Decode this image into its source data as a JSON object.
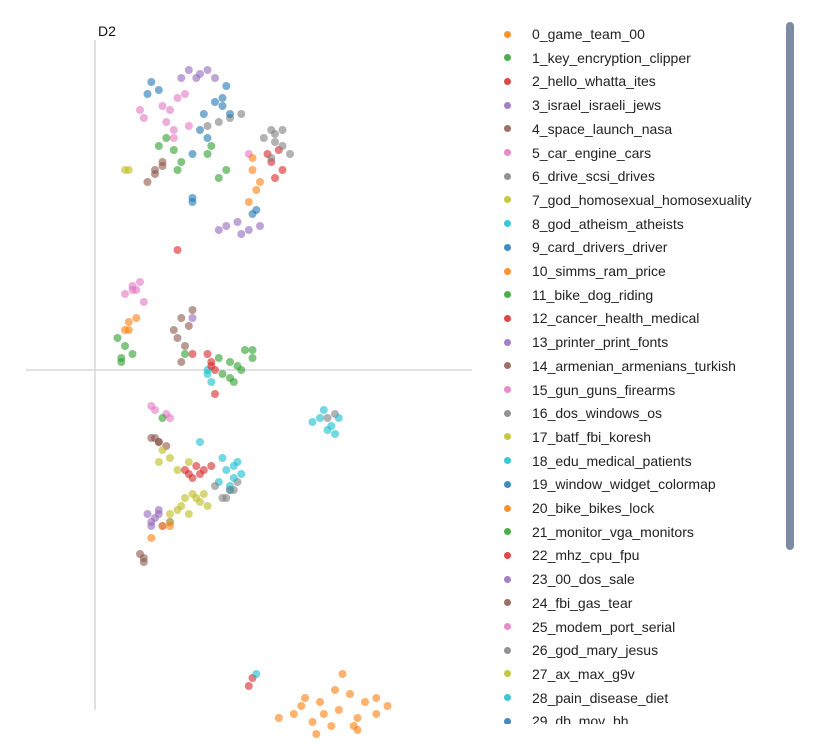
{
  "chart_data": {
    "type": "scatter",
    "title": "",
    "xlabel": "",
    "ylabel": "D2",
    "xlim": [
      -2,
      10
    ],
    "ylim": [
      -10,
      10
    ],
    "axis_lines": {
      "x": 0,
      "y": 0
    },
    "series": [
      {
        "name": "0_game_team_00",
        "color": "#ff7f0e",
        "points": [
          [
            6.5,
            -8.5
          ],
          [
            6.0,
            -8.3
          ],
          [
            7.0,
            -8.7
          ],
          [
            5.5,
            -8.4
          ],
          [
            7.5,
            -8.6
          ],
          [
            6.3,
            -8.9
          ],
          [
            6.8,
            -8.1
          ],
          [
            5.8,
            -8.8
          ],
          [
            7.2,
            -8.3
          ],
          [
            6.6,
            -7.6
          ],
          [
            5.3,
            -8.6
          ],
          [
            7.8,
            -8.4
          ],
          [
            6.1,
            -8.6
          ],
          [
            6.9,
            -8.9
          ],
          [
            4.9,
            -8.7
          ],
          [
            7.5,
            -8.2
          ],
          [
            5.6,
            -8.2
          ],
          [
            6.4,
            -8.0
          ],
          [
            7.0,
            -9.0
          ],
          [
            5.9,
            -9.1
          ]
        ]
      },
      {
        "name": "1_key_encryption_clipper",
        "color": "#2ca02c",
        "points": [
          [
            3.6,
            0.2
          ],
          [
            3.9,
            0.0
          ],
          [
            4.2,
            0.3
          ],
          [
            3.4,
            -0.1
          ],
          [
            4.0,
            0.5
          ],
          [
            3.7,
            -0.3
          ],
          [
            0.8,
            0.6
          ],
          [
            1.0,
            0.4
          ],
          [
            0.6,
            0.8
          ],
          [
            0.7,
            0.3
          ],
          [
            2.2,
            5.0
          ],
          [
            2.3,
            5.2
          ],
          [
            3.5,
            5.0
          ],
          [
            3.3,
            4.8
          ],
          [
            3.8,
            0.1
          ]
        ]
      },
      {
        "name": "2_hello_whatta_ites",
        "color": "#d62728",
        "points": [
          [
            4.7,
            5.2
          ],
          [
            4.9,
            5.5
          ],
          [
            5.0,
            5.0
          ],
          [
            4.6,
            5.4
          ],
          [
            4.8,
            4.8
          ],
          [
            3.1,
            0.2
          ],
          [
            3.2,
            0.0
          ],
          [
            3.0,
            0.4
          ],
          [
            2.9,
            -2.5
          ],
          [
            3.1,
            -2.4
          ],
          [
            2.8,
            -2.6
          ],
          [
            2.2,
            3.0
          ],
          [
            4.2,
            -7.7
          ]
        ]
      },
      {
        "name": "3_israel_israeli_jews",
        "color": "#9467bd",
        "points": [
          [
            1.6,
            -3.7
          ],
          [
            1.8,
            -3.9
          ],
          [
            1.4,
            -3.6
          ],
          [
            1.7,
            -3.5
          ],
          [
            2.0,
            -3.8
          ],
          [
            1.5,
            -3.9
          ],
          [
            3.5,
            3.6
          ],
          [
            3.8,
            3.7
          ],
          [
            4.1,
            3.5
          ],
          [
            3.3,
            3.5
          ],
          [
            4.4,
            3.6
          ],
          [
            2.8,
            7.4
          ],
          [
            3.0,
            7.5
          ],
          [
            3.2,
            7.3
          ]
        ]
      },
      {
        "name": "4_space_launch_nasa",
        "color": "#8c564b",
        "points": [
          [
            2.1,
            1.0
          ],
          [
            2.3,
            1.3
          ],
          [
            2.5,
            1.1
          ],
          [
            2.2,
            0.8
          ],
          [
            2.6,
            1.5
          ],
          [
            2.4,
            0.6
          ],
          [
            1.7,
            -1.8
          ],
          [
            1.9,
            -1.9
          ],
          [
            1.6,
            -1.7
          ],
          [
            1.3,
            -4.8
          ],
          [
            1.2,
            -4.6
          ],
          [
            1.8,
            5.1
          ],
          [
            1.6,
            5.0
          ]
        ]
      },
      {
        "name": "5_car_engine_cars",
        "color": "#e377c2",
        "points": [
          [
            2.0,
            6.5
          ],
          [
            2.2,
            6.8
          ],
          [
            1.8,
            6.6
          ],
          [
            2.4,
            6.9
          ],
          [
            1.9,
            6.2
          ],
          [
            2.5,
            6.1
          ],
          [
            2.1,
            5.8
          ],
          [
            1.0,
            2.0
          ],
          [
            1.2,
            2.2
          ],
          [
            0.8,
            1.9
          ],
          [
            1.3,
            1.7
          ],
          [
            1.6,
            -1.0
          ],
          [
            1.9,
            -1.1
          ],
          [
            4.1,
            5.4
          ]
        ]
      },
      {
        "name": "6_drive_scsi_drives",
        "color": "#7f7f7f",
        "points": [
          [
            3.3,
            6.2
          ],
          [
            3.6,
            6.3
          ],
          [
            3.0,
            6.1
          ],
          [
            3.9,
            6.4
          ],
          [
            4.5,
            5.8
          ],
          [
            4.8,
            5.7
          ],
          [
            5.0,
            6.0
          ],
          [
            4.7,
            5.3
          ],
          [
            3.7,
            -3.0
          ],
          [
            3.5,
            -3.2
          ],
          [
            3.8,
            -2.8
          ],
          [
            6.2,
            -1.2
          ],
          [
            6.4,
            -1.1
          ]
        ]
      },
      {
        "name": "7_god_homosexual_homosexuality",
        "color": "#bcbd22",
        "points": [
          [
            1.8,
            -2.0
          ],
          [
            2.0,
            -2.2
          ],
          [
            1.7,
            -2.3
          ],
          [
            2.2,
            -2.5
          ],
          [
            2.5,
            -2.3
          ],
          [
            2.6,
            -3.1
          ],
          [
            2.8,
            -3.3
          ],
          [
            2.4,
            -3.2
          ],
          [
            3.0,
            -3.4
          ],
          [
            2.0,
            -3.6
          ],
          [
            2.2,
            -3.5
          ],
          [
            0.9,
            5.0
          ]
        ]
      },
      {
        "name": "8_god_atheism_atheists",
        "color": "#17becf",
        "points": [
          [
            6.0,
            -1.2
          ],
          [
            6.2,
            -1.5
          ],
          [
            5.8,
            -1.3
          ],
          [
            6.4,
            -1.6
          ],
          [
            6.1,
            -1.0
          ],
          [
            3.5,
            -2.5
          ],
          [
            3.7,
            -2.7
          ],
          [
            3.3,
            -2.8
          ],
          [
            3.6,
            -3.0
          ],
          [
            3.9,
            -2.6
          ],
          [
            3.4,
            -2.2
          ],
          [
            2.8,
            -1.8
          ],
          [
            3.0,
            0.0
          ]
        ]
      },
      {
        "name": "9_card_drivers_driver",
        "color": "#1f77b4",
        "points": [
          [
            1.5,
            7.2
          ],
          [
            1.7,
            7.0
          ],
          [
            1.4,
            6.9
          ],
          [
            2.8,
            6.0
          ],
          [
            3.0,
            5.8
          ],
          [
            2.9,
            6.4
          ],
          [
            3.2,
            6.7
          ],
          [
            3.4,
            6.8
          ],
          [
            3.5,
            7.1
          ],
          [
            2.6,
            4.3
          ]
        ]
      },
      {
        "name": "10_simms_ram_price",
        "color": "#ff7f0e",
        "points": [
          [
            4.2,
            5.0
          ],
          [
            4.3,
            4.5
          ],
          [
            4.1,
            4.2
          ],
          [
            4.4,
            4.7
          ],
          [
            4.2,
            5.3
          ],
          [
            0.9,
            1.2
          ],
          [
            1.1,
            1.3
          ],
          [
            0.8,
            1.0
          ],
          [
            1.5,
            -4.2
          ]
        ]
      },
      {
        "name": "11_bike_dog_riding",
        "color": "#2ca02c",
        "points": [
          [
            1.7,
            5.6
          ],
          [
            1.9,
            5.8
          ],
          [
            2.1,
            5.5
          ],
          [
            3.0,
            5.4
          ],
          [
            3.1,
            5.6
          ],
          [
            1.8,
            -1.2
          ],
          [
            4.2,
            0.5
          ],
          [
            2.4,
            0.4
          ]
        ]
      },
      {
        "name": "12_cancer_health_medical",
        "color": "#d62728",
        "points": [
          [
            2.5,
            -2.6
          ],
          [
            2.7,
            -2.4
          ],
          [
            2.4,
            -2.5
          ],
          [
            2.6,
            0.4
          ],
          [
            3.2,
            -0.6
          ]
        ]
      },
      {
        "name": "13_printer_print_fonts",
        "color": "#9467bd",
        "points": [
          [
            2.3,
            7.3
          ],
          [
            2.5,
            7.5
          ],
          [
            2.7,
            7.3
          ],
          [
            2.6,
            1.3
          ]
        ]
      },
      {
        "name": "14_armenian_armenians_turkish",
        "color": "#8c564b",
        "points": [
          [
            1.6,
            4.9
          ],
          [
            1.8,
            5.2
          ],
          [
            1.4,
            4.7
          ],
          [
            2.3,
            0.2
          ]
        ]
      },
      {
        "name": "15_gun_guns_firearms",
        "color": "#e377c2",
        "points": [
          [
            1.2,
            6.5
          ],
          [
            1.3,
            6.3
          ],
          [
            2.0,
            -1.2
          ],
          [
            1.0,
            2.1
          ]
        ]
      },
      {
        "name": "16_dos_windows_os",
        "color": "#7f7f7f",
        "points": [
          [
            5.0,
            5.6
          ],
          [
            5.2,
            5.4
          ],
          [
            4.7,
            6.0
          ],
          [
            3.2,
            -2.9
          ]
        ]
      },
      {
        "name": "17_batf_fbi_koresh",
        "color": "#bcbd22",
        "points": [
          [
            2.3,
            -3.4
          ],
          [
            2.5,
            -3.6
          ],
          [
            2.7,
            -3.2
          ],
          [
            2.0,
            -3.8
          ]
        ]
      },
      {
        "name": "18_edu_medical_patients",
        "color": "#17becf",
        "points": [
          [
            6.3,
            -1.4
          ],
          [
            6.5,
            -1.2
          ],
          [
            3.6,
            -2.9
          ],
          [
            3.8,
            -2.3
          ],
          [
            3.1,
            -0.3
          ]
        ]
      },
      {
        "name": "19_window_widget_colormap",
        "color": "#1f77b4",
        "points": [
          [
            3.4,
            6.6
          ],
          [
            3.6,
            6.4
          ],
          [
            2.6,
            5.4
          ],
          [
            4.3,
            4.0
          ]
        ]
      },
      {
        "name": "20_bike_bikes_lock",
        "color": "#ff7f0e",
        "points": [
          [
            1.8,
            -3.9
          ],
          [
            2.0,
            -3.9
          ],
          [
            0.9,
            1.0
          ]
        ]
      },
      {
        "name": "21_monitor_vga_monitors",
        "color": "#2ca02c",
        "points": [
          [
            3.3,
            0.3
          ],
          [
            3.6,
            -0.2
          ],
          [
            0.7,
            0.2
          ]
        ]
      },
      {
        "name": "22_mhz_cpu_fpu",
        "color": "#d62728",
        "points": [
          [
            2.6,
            -2.7
          ],
          [
            4.1,
            -7.9
          ],
          [
            3.1,
            0.1
          ]
        ]
      },
      {
        "name": "23_00_dos_sale",
        "color": "#9467bd",
        "points": [
          [
            1.5,
            -3.8
          ],
          [
            1.7,
            -3.6
          ],
          [
            3.9,
            3.4
          ]
        ]
      },
      {
        "name": "24_fbi_gas_tear",
        "color": "#8c564b",
        "points": [
          [
            1.5,
            -1.7
          ],
          [
            1.7,
            -1.8
          ],
          [
            1.3,
            -4.7
          ]
        ]
      },
      {
        "name": "25_modem_port_serial",
        "color": "#e377c2",
        "points": [
          [
            1.1,
            2.0
          ],
          [
            1.5,
            -0.9
          ],
          [
            2.1,
            6.0
          ]
        ]
      },
      {
        "name": "26_god_mary_jesus",
        "color": "#7f7f7f",
        "points": [
          [
            3.4,
            -3.2
          ],
          [
            3.6,
            -3.0
          ],
          [
            4.8,
            5.9
          ]
        ]
      },
      {
        "name": "27_ax_max_g9v",
        "color": "#bcbd22",
        "points": [
          [
            0.8,
            5.0
          ],
          [
            2.9,
            -3.1
          ]
        ]
      },
      {
        "name": "28_pain_disease_diet",
        "color": "#17becf",
        "points": [
          [
            3.0,
            -0.1
          ],
          [
            3.7,
            -2.4
          ],
          [
            4.3,
            -7.6
          ]
        ]
      },
      {
        "name": "29_db_mov_bh",
        "color": "#1f77b4",
        "points": [
          [
            4.2,
            3.9
          ],
          [
            2.6,
            4.2
          ]
        ]
      }
    ]
  },
  "legend_colors": [
    "#ff7f0e",
    "#2ca02c",
    "#d62728",
    "#9467bd",
    "#8c564b",
    "#e377c2",
    "#7f7f7f",
    "#bcbd22",
    "#17becf",
    "#1f77b4",
    "#ff7f0e",
    "#2ca02c",
    "#d62728",
    "#9467bd",
    "#8c564b",
    "#e377c2",
    "#7f7f7f",
    "#bcbd22",
    "#17becf",
    "#1f77b4",
    "#ff7f0e",
    "#2ca02c",
    "#d62728",
    "#9467bd",
    "#8c564b",
    "#e377c2",
    "#7f7f7f",
    "#bcbd22",
    "#17becf",
    "#1f77b4"
  ],
  "outlier_color": "#c8d0d8"
}
